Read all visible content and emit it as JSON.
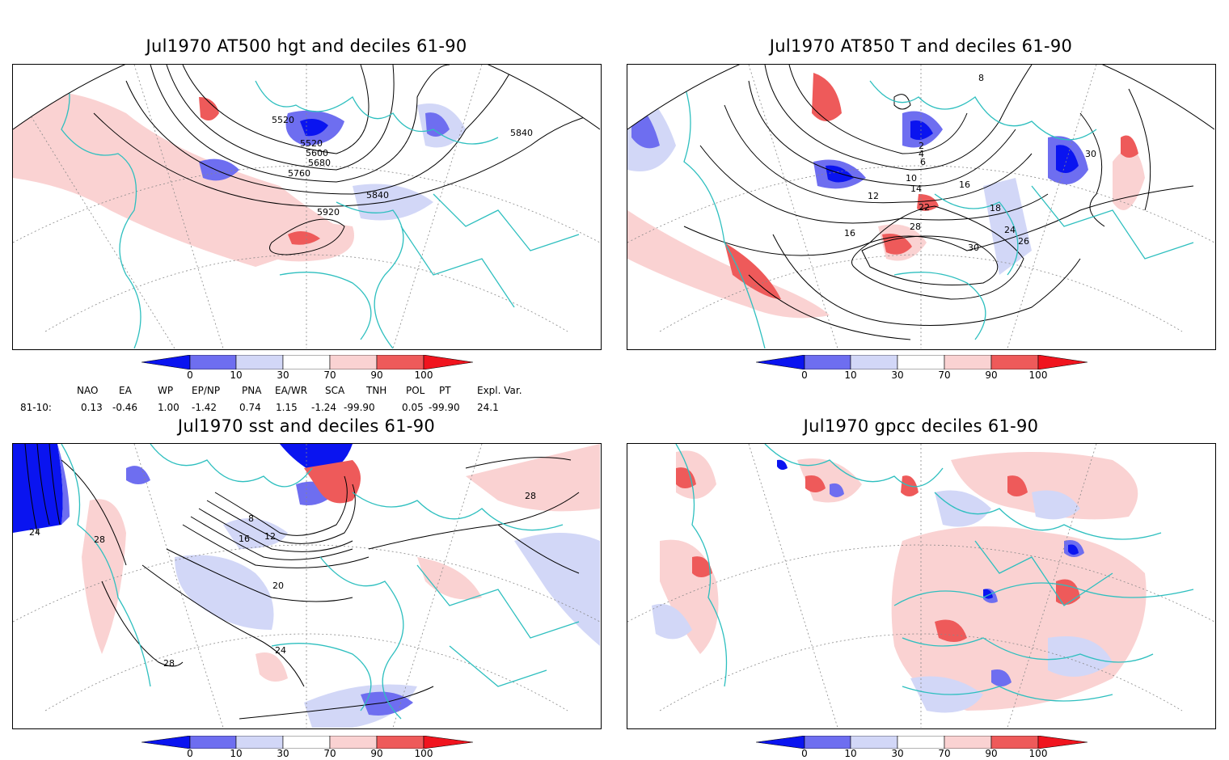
{
  "panels": [
    {
      "id": "hgt500",
      "title": "Jul1970 AT500 hgt and deciles 61-90",
      "contour_labels": [
        "5520",
        "5520",
        "5600",
        "5680",
        "5760",
        "5840",
        "5840",
        "5920"
      ]
    },
    {
      "id": "t850",
      "title": "Jul1970 AT850 T and deciles 61-90",
      "contour_labels": [
        "2",
        "4",
        "6",
        "8",
        "10",
        "12",
        "14",
        "16",
        "16",
        "18",
        "22",
        "24",
        "26",
        "28",
        "30",
        "30"
      ]
    },
    {
      "id": "sst",
      "title": "Jul1970 sst and deciles 61-90",
      "contour_labels": [
        "8",
        "12",
        "16",
        "20",
        "24",
        "24",
        "28",
        "28",
        "28"
      ]
    },
    {
      "id": "gpcc",
      "title": "Jul1970 gpcc deciles 61-90",
      "contour_labels": []
    }
  ],
  "colorbar": {
    "ticks": [
      "0",
      "10",
      "30",
      "70",
      "90",
      "100"
    ],
    "colors": [
      "#0a14f0",
      "#6e6ef0",
      "#d2d7f7",
      "#ffffff",
      "#fad2d2",
      "#ee5a5a",
      "#f0141e"
    ]
  },
  "indices": {
    "headers": [
      "NAO",
      "EA",
      "WP",
      "EP/NP",
      "PNA",
      "EA/WR",
      "SCA",
      "TNH",
      "POL",
      "PT",
      "Expl. Var."
    ],
    "row_label": "81-10:",
    "values": [
      "0.13",
      "-0.46",
      "1.00",
      "-1.42",
      "0.74",
      "1.15",
      "-1.24",
      "-99.90",
      "0.05",
      "-99.90",
      "24.1"
    ]
  },
  "colors": {
    "coast": "#2ebfbf",
    "frame": "#000000",
    "grid": "#888888"
  }
}
